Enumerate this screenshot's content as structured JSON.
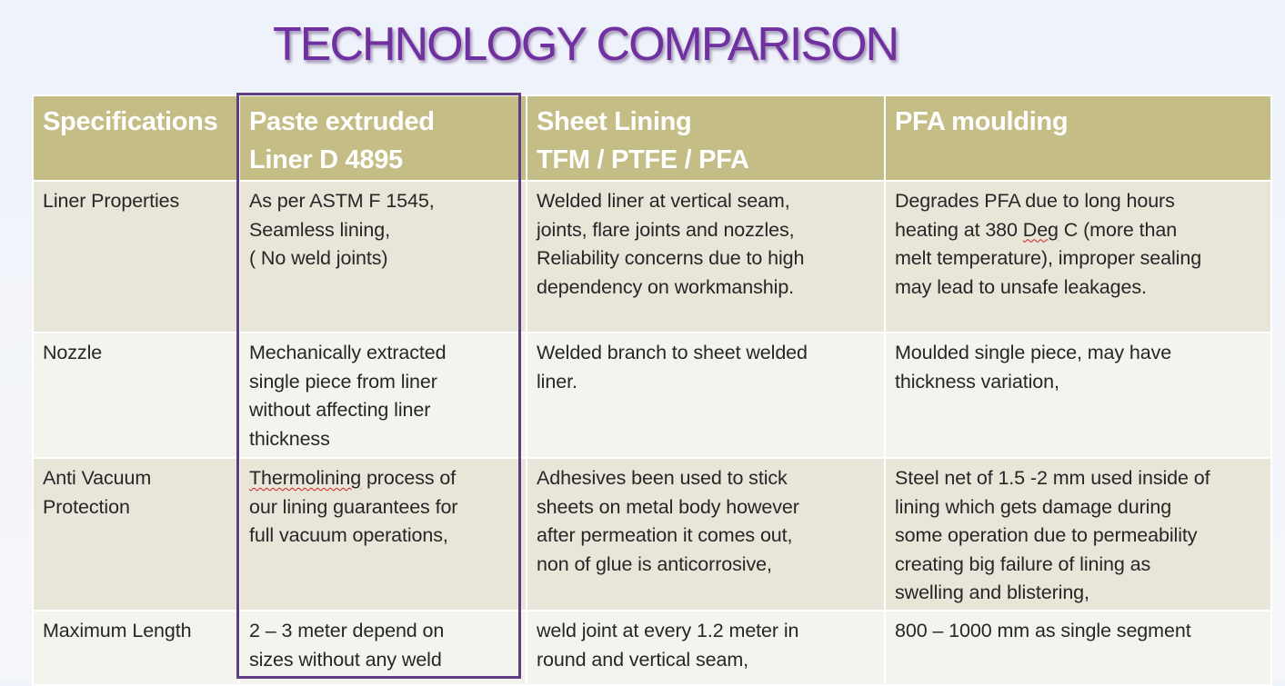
{
  "title": "TECHNOLOGY COMPARISON",
  "table": {
    "headers": [
      "Specifications",
      "Paste extruded\nLiner D 4895",
      "Sheet Lining\nTFM / PTFE / PFA",
      "PFA moulding"
    ],
    "rows": [
      {
        "spec": "Liner Properties",
        "paste": "As per ASTM F 1545,\nSeamless lining,\n( No weld joints)",
        "sheet": "Welded liner at vertical seam,\njoints, flare joints and nozzles,\nReliability concerns due to high\ndependency on workmanship.",
        "pfa_pre": "Degrades PFA due to long hours\nheating at 380 ",
        "pfa_mark": "Deg",
        "pfa_post": " C (more than\nmelt temperature), improper sealing\nmay lead to unsafe leakages."
      },
      {
        "spec": "Nozzle",
        "paste": "Mechanically extracted\nsingle piece from liner\nwithout affecting liner\nthickness",
        "sheet": "Welded branch to sheet welded\nliner.",
        "pfa": "Moulded single piece, may have\nthickness variation,"
      },
      {
        "spec": "Anti Vacuum\nProtection",
        "paste_mark": "Thermolining",
        "paste_post": " process of\nour lining guarantees  for\nfull vacuum operations,",
        "sheet": "Adhesives been used to stick\nsheets on metal body however\nafter permeation it comes out,\nnon of glue is anticorrosive,",
        "pfa": "Steel net of 1.5 -2 mm used inside of\nlining which gets damage during\nsome operation due to permeability\ncreating big failure of lining as\nswelling and blistering,"
      },
      {
        "spec": "Maximum Length",
        "paste": "2 – 3 meter depend on\nsizes without any weld",
        "sheet": "weld joint at every 1.2 meter in\nround and vertical seam,",
        "pfa": "800 – 1000 mm as single segment"
      }
    ]
  },
  "colors": {
    "title": "#7030a0",
    "header_bg": "#c4bd86",
    "row_dark": "#e8e5d9",
    "row_light": "#f4f3ee",
    "highlight_border": "#603d83"
  }
}
